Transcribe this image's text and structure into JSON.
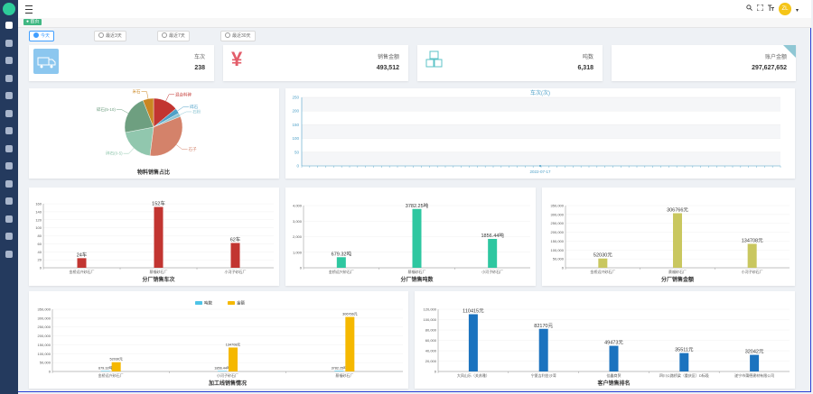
{
  "header": {
    "avatar_initials": "ZL",
    "icons": [
      "search-icon",
      "fullscreen-icon",
      "font-size-icon"
    ]
  },
  "tags": {
    "home": "首页"
  },
  "filters": [
    {
      "label": "今天",
      "active": true
    },
    {
      "label": "最近3天",
      "active": false
    },
    {
      "label": "最近7天",
      "active": false
    },
    {
      "label": "最近30天",
      "active": false
    }
  ],
  "stats": [
    {
      "label": "车次",
      "value": "238",
      "icon": "truck-icon",
      "color": "#8cc7ef"
    },
    {
      "label": "销售金额",
      "value": "493,512",
      "icon": "yen-icon",
      "color": "#e35d6a"
    },
    {
      "label": "吨数",
      "value": "6,318",
      "icon": "boxes-icon",
      "color": "#5dc3c7"
    },
    {
      "label": "账户金额",
      "value": "297,627,652",
      "icon": "wallet-icon",
      "color": "#f5a623"
    }
  ],
  "chart_data": [
    {
      "type": "pie",
      "title": "物料销售占比",
      "slices": [
        {
          "name": "混合料碎",
          "value": 14,
          "color": "#c23531"
        },
        {
          "name": "碎石",
          "value": 3,
          "color": "#4fa1c8"
        },
        {
          "name": "石粉",
          "value": 2,
          "color": "#8fc7d4"
        },
        {
          "name": "石子",
          "value": 33,
          "color": "#d4826a"
        },
        {
          "name": "碎石(0-5)",
          "value": 20,
          "color": "#91c7ae"
        },
        {
          "name": "碎石(5-10)",
          "value": 22,
          "color": "#6e9f80"
        },
        {
          "name": "米石",
          "value": 6,
          "color": "#ca8622"
        }
      ]
    },
    {
      "type": "line",
      "title": "车次(次)",
      "x": [
        "2022-07-17"
      ],
      "values": [
        0
      ],
      "ylim": [
        0,
        250
      ],
      "yticks": [
        0,
        50,
        100,
        150,
        200,
        250
      ]
    },
    {
      "type": "bar",
      "title": "分厂销售车次",
      "categories": [
        "金桥远兴砂石厂",
        "蔡福砂石厂",
        "小河子砂石厂"
      ],
      "values": [
        24,
        152,
        62
      ],
      "labels": [
        "24车",
        "152车",
        "62车"
      ],
      "ylim": [
        0,
        160
      ],
      "yticks": [
        0,
        20,
        40,
        60,
        80,
        100,
        120,
        140,
        160
      ],
      "color": "#c23531"
    },
    {
      "type": "bar",
      "title": "分厂销售吨数",
      "categories": [
        "金桥远兴砂石厂",
        "蔡福砂石厂",
        "小河子砂石厂"
      ],
      "values": [
        679.32,
        3782.25,
        1856.44
      ],
      "labels": [
        "679.32吨",
        "3782.25吨",
        "1856.44吨"
      ],
      "ylim": [
        0,
        4000
      ],
      "yticks": [
        0,
        1000,
        2000,
        3000,
        4000
      ],
      "color": "#2ec7a0"
    },
    {
      "type": "bar",
      "title": "分厂销售金额",
      "categories": [
        "金桥远兴砂石厂",
        "蔡福砂石厂",
        "小河子砂石厂"
      ],
      "values": [
        52030,
        306766,
        134708
      ],
      "labels": [
        "52030元",
        "306766元",
        "134708元"
      ],
      "ylim": [
        0,
        350000
      ],
      "yticks": [
        0,
        50000,
        100000,
        150000,
        200000,
        250000,
        300000,
        350000
      ],
      "color": "#c9c75f"
    },
    {
      "type": "bar",
      "title": "加工线销售情况",
      "categories": [
        "金桥远兴砂石厂",
        "小河子砂石厂",
        "蔡福砂石厂"
      ],
      "series": [
        {
          "name": "吨数",
          "values": [
            679.32,
            1856.44,
            3782.25
          ],
          "labels": [
            "679.32吨",
            "1856.44吨",
            "3782.25吨"
          ],
          "color": "#4dc3e6"
        },
        {
          "name": "金额",
          "values": [
            52030,
            134708,
            306766
          ],
          "labels": [
            "52030元",
            "134708元",
            "306766元"
          ],
          "color": "#f5b800"
        }
      ],
      "ylim": [
        0,
        350000
      ],
      "yticks": [
        0,
        50000,
        100000,
        150000,
        200000,
        250000,
        300000,
        350000
      ],
      "legend": "top"
    },
    {
      "type": "bar",
      "title": "客户销售排名",
      "categories": [
        "大凤山乐（关苏雅）",
        "宁夏吉利金沙湾",
        "佳鑫商贸",
        "四川公路桥梁（重庆区）D标段",
        "遂宁市蒲德建材有限公司"
      ],
      "values": [
        110415,
        82170,
        49473,
        35511,
        32042
      ],
      "labels": [
        "110415元",
        "82170元",
        "49473元",
        "35511元",
        "32042元"
      ],
      "ylim": [
        0,
        120000
      ],
      "yticks": [
        0,
        20000,
        40000,
        60000,
        80000,
        100000,
        120000
      ],
      "color": "#1b73bf"
    }
  ]
}
